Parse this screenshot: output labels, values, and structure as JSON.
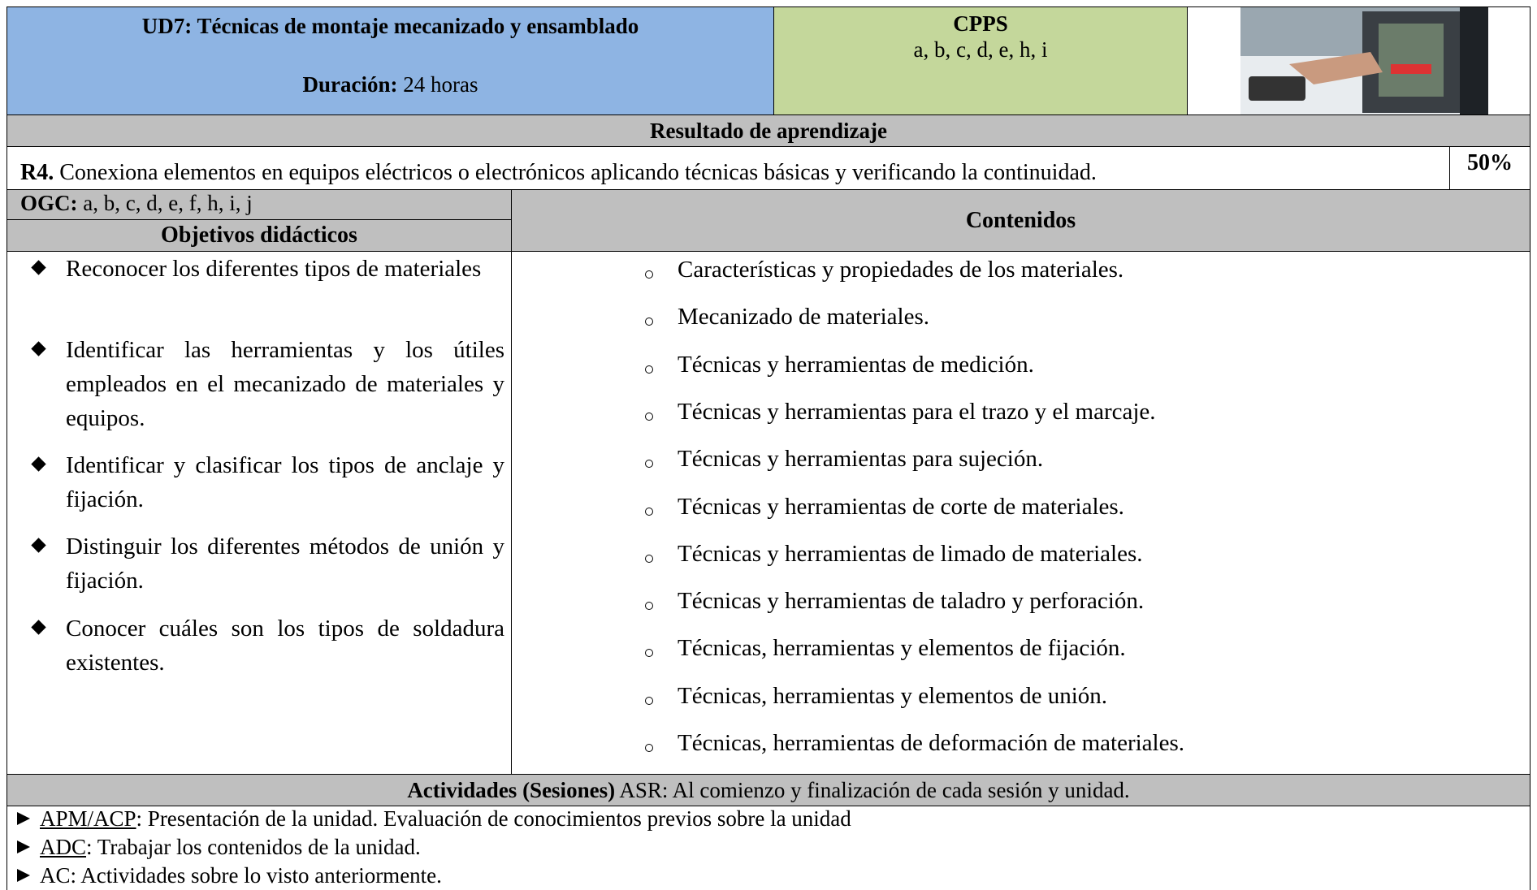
{
  "header": {
    "title": "UD7: Técnicas de montaje mecanizado y ensamblado",
    "duration_label": "Duración:",
    "duration_value": "24 horas",
    "cpps_label": "CPPS",
    "cpps_value": "a, b, c, d, e, h, i"
  },
  "result": {
    "heading": "Resultado de aprendizaje",
    "code": "R4.",
    "text": "Conexiona elementos en equipos eléctricos o electrónicos aplicando técnicas básicas y verificando  la continuidad.",
    "weight": "50%"
  },
  "ogc": {
    "label": "OGC:",
    "value": "a, b, c, d, e, f, h, i, j"
  },
  "objectives": {
    "heading": "Objetivos didácticos",
    "items": [
      "Reconocer los diferentes tipos de materiales",
      "Identificar las herramientas y los útiles empleados en el mecanizado de materiales y equipos.",
      "Identificar y clasificar los tipos de anclaje y fijación.",
      "Distinguir los diferentes métodos de unión y fijación.",
      "Conocer cuáles son los tipos de soldadura existentes."
    ]
  },
  "contents": {
    "heading": "Contenidos",
    "items": [
      "Características y propiedades de los materiales.",
      "Mecanizado de materiales.",
      "Técnicas y herramientas de medición.",
      "Técnicas y herramientas para el trazo y el marcaje.",
      "Técnicas y herramientas para sujeción.",
      "Técnicas y herramientas de corte de materiales.",
      "Técnicas y herramientas de limado de materiales.",
      "Técnicas y herramientas de taladro y perforación.",
      "Técnicas, herramientas y elementos de fijación.",
      "Técnicas, herramientas y elementos de unión.",
      "Técnicas, herramientas de deformación de materiales."
    ]
  },
  "activities": {
    "heading_bold": "Actividades (Sesiones)",
    "heading_rest": "ASR: Al comienzo y finalización de cada sesión y unidad.",
    "items": [
      {
        "code": "APM/ACP",
        "text": ": Presentación de la unidad. Evaluación de conocimientos previos sobre la unidad"
      },
      {
        "code": "ADC",
        "text": ": Trabajar los contenidos de la unidad."
      },
      {
        "code": "AC",
        "text": ": Actividades sobre lo visto anteriormente."
      }
    ]
  }
}
